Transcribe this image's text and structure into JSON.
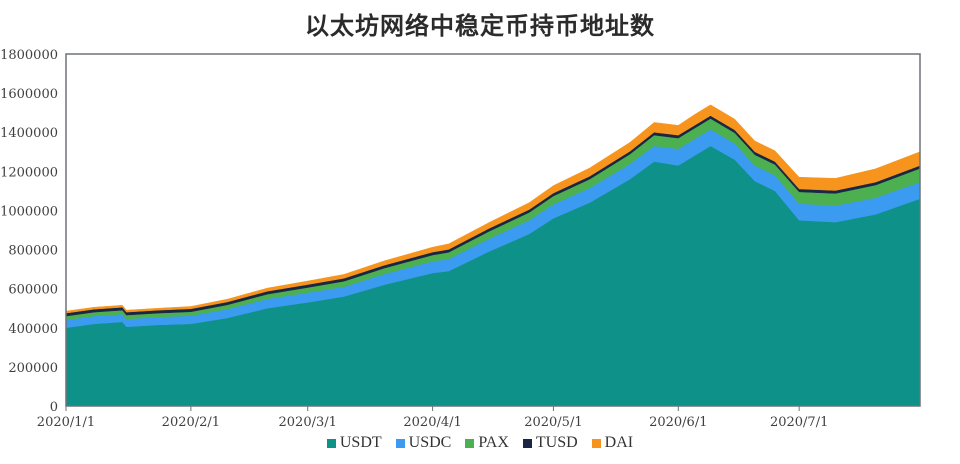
{
  "title": "以太坊网络中稳定币持币地址数",
  "chart_data": {
    "type": "area",
    "stacked": true,
    "title": "以太坊网络中稳定币持币地址数",
    "xlabel": "",
    "ylabel": "",
    "ylim": [
      0,
      1800000
    ],
    "yticks": [
      0,
      200000,
      400000,
      600000,
      800000,
      1000000,
      1200000,
      1400000,
      1600000,
      1800000
    ],
    "ytick_labels": [
      "0",
      "200000",
      "400000",
      "600000",
      "800000",
      "1000000",
      "1200000",
      "1400000",
      "1600000",
      "1800000"
    ],
    "xtick_labels": [
      "2020/1/1",
      "2020/2/1",
      "2020/3/1",
      "2020/4/1",
      "2020/5/1",
      "2020/6/1",
      "2020/7/1"
    ],
    "grid": false,
    "legend_position": "bottom",
    "x": [
      "2020/1/1",
      "2020/1/8",
      "2020/1/15",
      "2020/1/16",
      "2020/1/24",
      "2020/2/1",
      "2020/2/10",
      "2020/2/20",
      "2020/3/1",
      "2020/3/10",
      "2020/3/20",
      "2020/4/1",
      "2020/4/5",
      "2020/4/15",
      "2020/4/25",
      "2020/5/1",
      "2020/5/10",
      "2020/5/20",
      "2020/5/26",
      "2020/6/1",
      "2020/6/5",
      "2020/6/9",
      "2020/6/15",
      "2020/6/20",
      "2020/6/25",
      "2020/7/1",
      "2020/7/10",
      "2020/7/20",
      "2020/7/31"
    ],
    "series": [
      {
        "name": "USDT",
        "color": "#0e9189",
        "values": [
          400000,
          420000,
          430000,
          405000,
          415000,
          420000,
          450000,
          500000,
          530000,
          560000,
          620000,
          680000,
          690000,
          790000,
          880000,
          960000,
          1040000,
          1160000,
          1250000,
          1230000,
          1280000,
          1330000,
          1260000,
          1150000,
          1100000,
          950000,
          940000,
          980000,
          1060000
        ]
      },
      {
        "name": "USDC",
        "color": "#3a9bf0",
        "values": [
          40000,
          40000,
          40000,
          40000,
          40000,
          42000,
          45000,
          48000,
          50000,
          50000,
          55000,
          60000,
          62000,
          65000,
          70000,
          72000,
          75000,
          78000,
          80000,
          85000,
          85000,
          85000,
          82000,
          80000,
          80000,
          85000,
          85000,
          85000,
          85000
        ]
      },
      {
        "name": "PAX",
        "color": "#4caf50",
        "values": [
          20000,
          20000,
          20000,
          20000,
          20000,
          20000,
          22000,
          24000,
          26000,
          28000,
          30000,
          32000,
          34000,
          38000,
          40000,
          42000,
          45000,
          50000,
          55000,
          55000,
          55000,
          55000,
          55000,
          55000,
          55000,
          60000,
          62000,
          65000,
          70000
        ]
      },
      {
        "name": "TUSD",
        "color": "#1a2744",
        "values": [
          15000,
          15000,
          15000,
          15000,
          15000,
          15000,
          15000,
          15000,
          15000,
          15000,
          15000,
          15000,
          15000,
          15000,
          15000,
          15000,
          15000,
          15000,
          15000,
          15000,
          15000,
          15000,
          15000,
          15000,
          15000,
          15000,
          15000,
          15000,
          15000
        ]
      },
      {
        "name": "DAI",
        "color": "#f7941d",
        "values": [
          10000,
          10000,
          10000,
          10000,
          10000,
          12000,
          14000,
          16000,
          18000,
          20000,
          22000,
          25000,
          28000,
          30000,
          35000,
          38000,
          42000,
          45000,
          50000,
          50000,
          55000,
          55000,
          55000,
          55000,
          55000,
          60000,
          62000,
          68000,
          70000
        ]
      }
    ]
  },
  "legend": {
    "items": [
      {
        "label": "USDT",
        "color": "#0e9189"
      },
      {
        "label": "USDC",
        "color": "#3a9bf0"
      },
      {
        "label": "PAX",
        "color": "#4caf50"
      },
      {
        "label": "TUSD",
        "color": "#1a2744"
      },
      {
        "label": "DAI",
        "color": "#f7941d"
      }
    ]
  }
}
